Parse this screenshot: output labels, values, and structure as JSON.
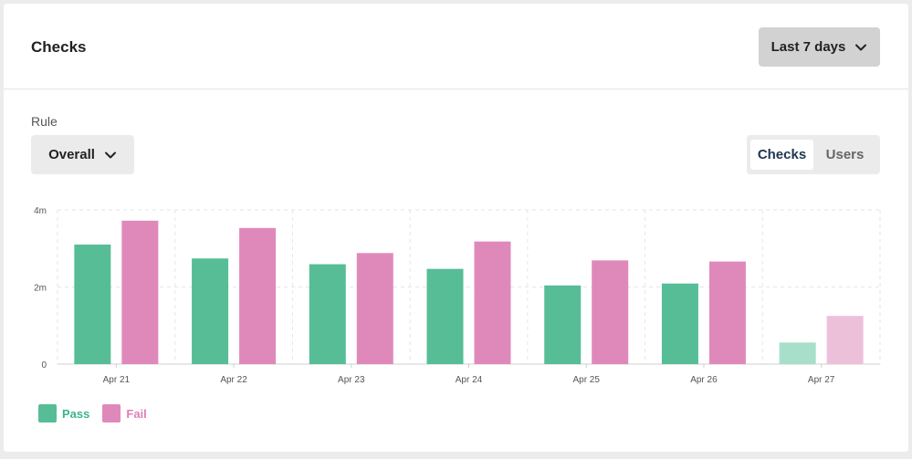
{
  "header": {
    "title": "Checks",
    "range_label": "Last 7 days",
    "range_icon": "chevron-down-icon"
  },
  "filters": {
    "rule_label": "Rule",
    "rule_value": "Overall",
    "rule_icon": "chevron-down-icon",
    "toggle": [
      {
        "label": "Checks",
        "active": true
      },
      {
        "label": "Users",
        "active": false
      }
    ]
  },
  "colors": {
    "pass": "#56bd97",
    "fail": "#df89bb",
    "pass_light": "#a7dfca",
    "fail_light": "#edc0da",
    "pass_text": "#3db58a",
    "fail_text": "#df7fb5"
  },
  "chart_data": {
    "type": "bar",
    "categories": [
      "Apr 21",
      "Apr 22",
      "Apr 23",
      "Apr 24",
      "Apr 25",
      "Apr 26",
      "Apr 27"
    ],
    "series": [
      {
        "name": "Pass",
        "values": [
          3.1,
          2.74,
          2.59,
          2.47,
          2.04,
          2.09,
          0.56
        ]
      },
      {
        "name": "Fail",
        "values": [
          3.72,
          3.53,
          2.88,
          3.18,
          2.69,
          2.66,
          1.25
        ]
      }
    ],
    "partial_categories": [
      "Apr 27"
    ],
    "yticks": [
      {
        "value": 0,
        "label": "0"
      },
      {
        "value": 2,
        "label": "2m"
      },
      {
        "value": 4,
        "label": "4m"
      }
    ],
    "ylim": [
      0,
      4
    ],
    "grid": true,
    "legend": "bottom-left"
  }
}
